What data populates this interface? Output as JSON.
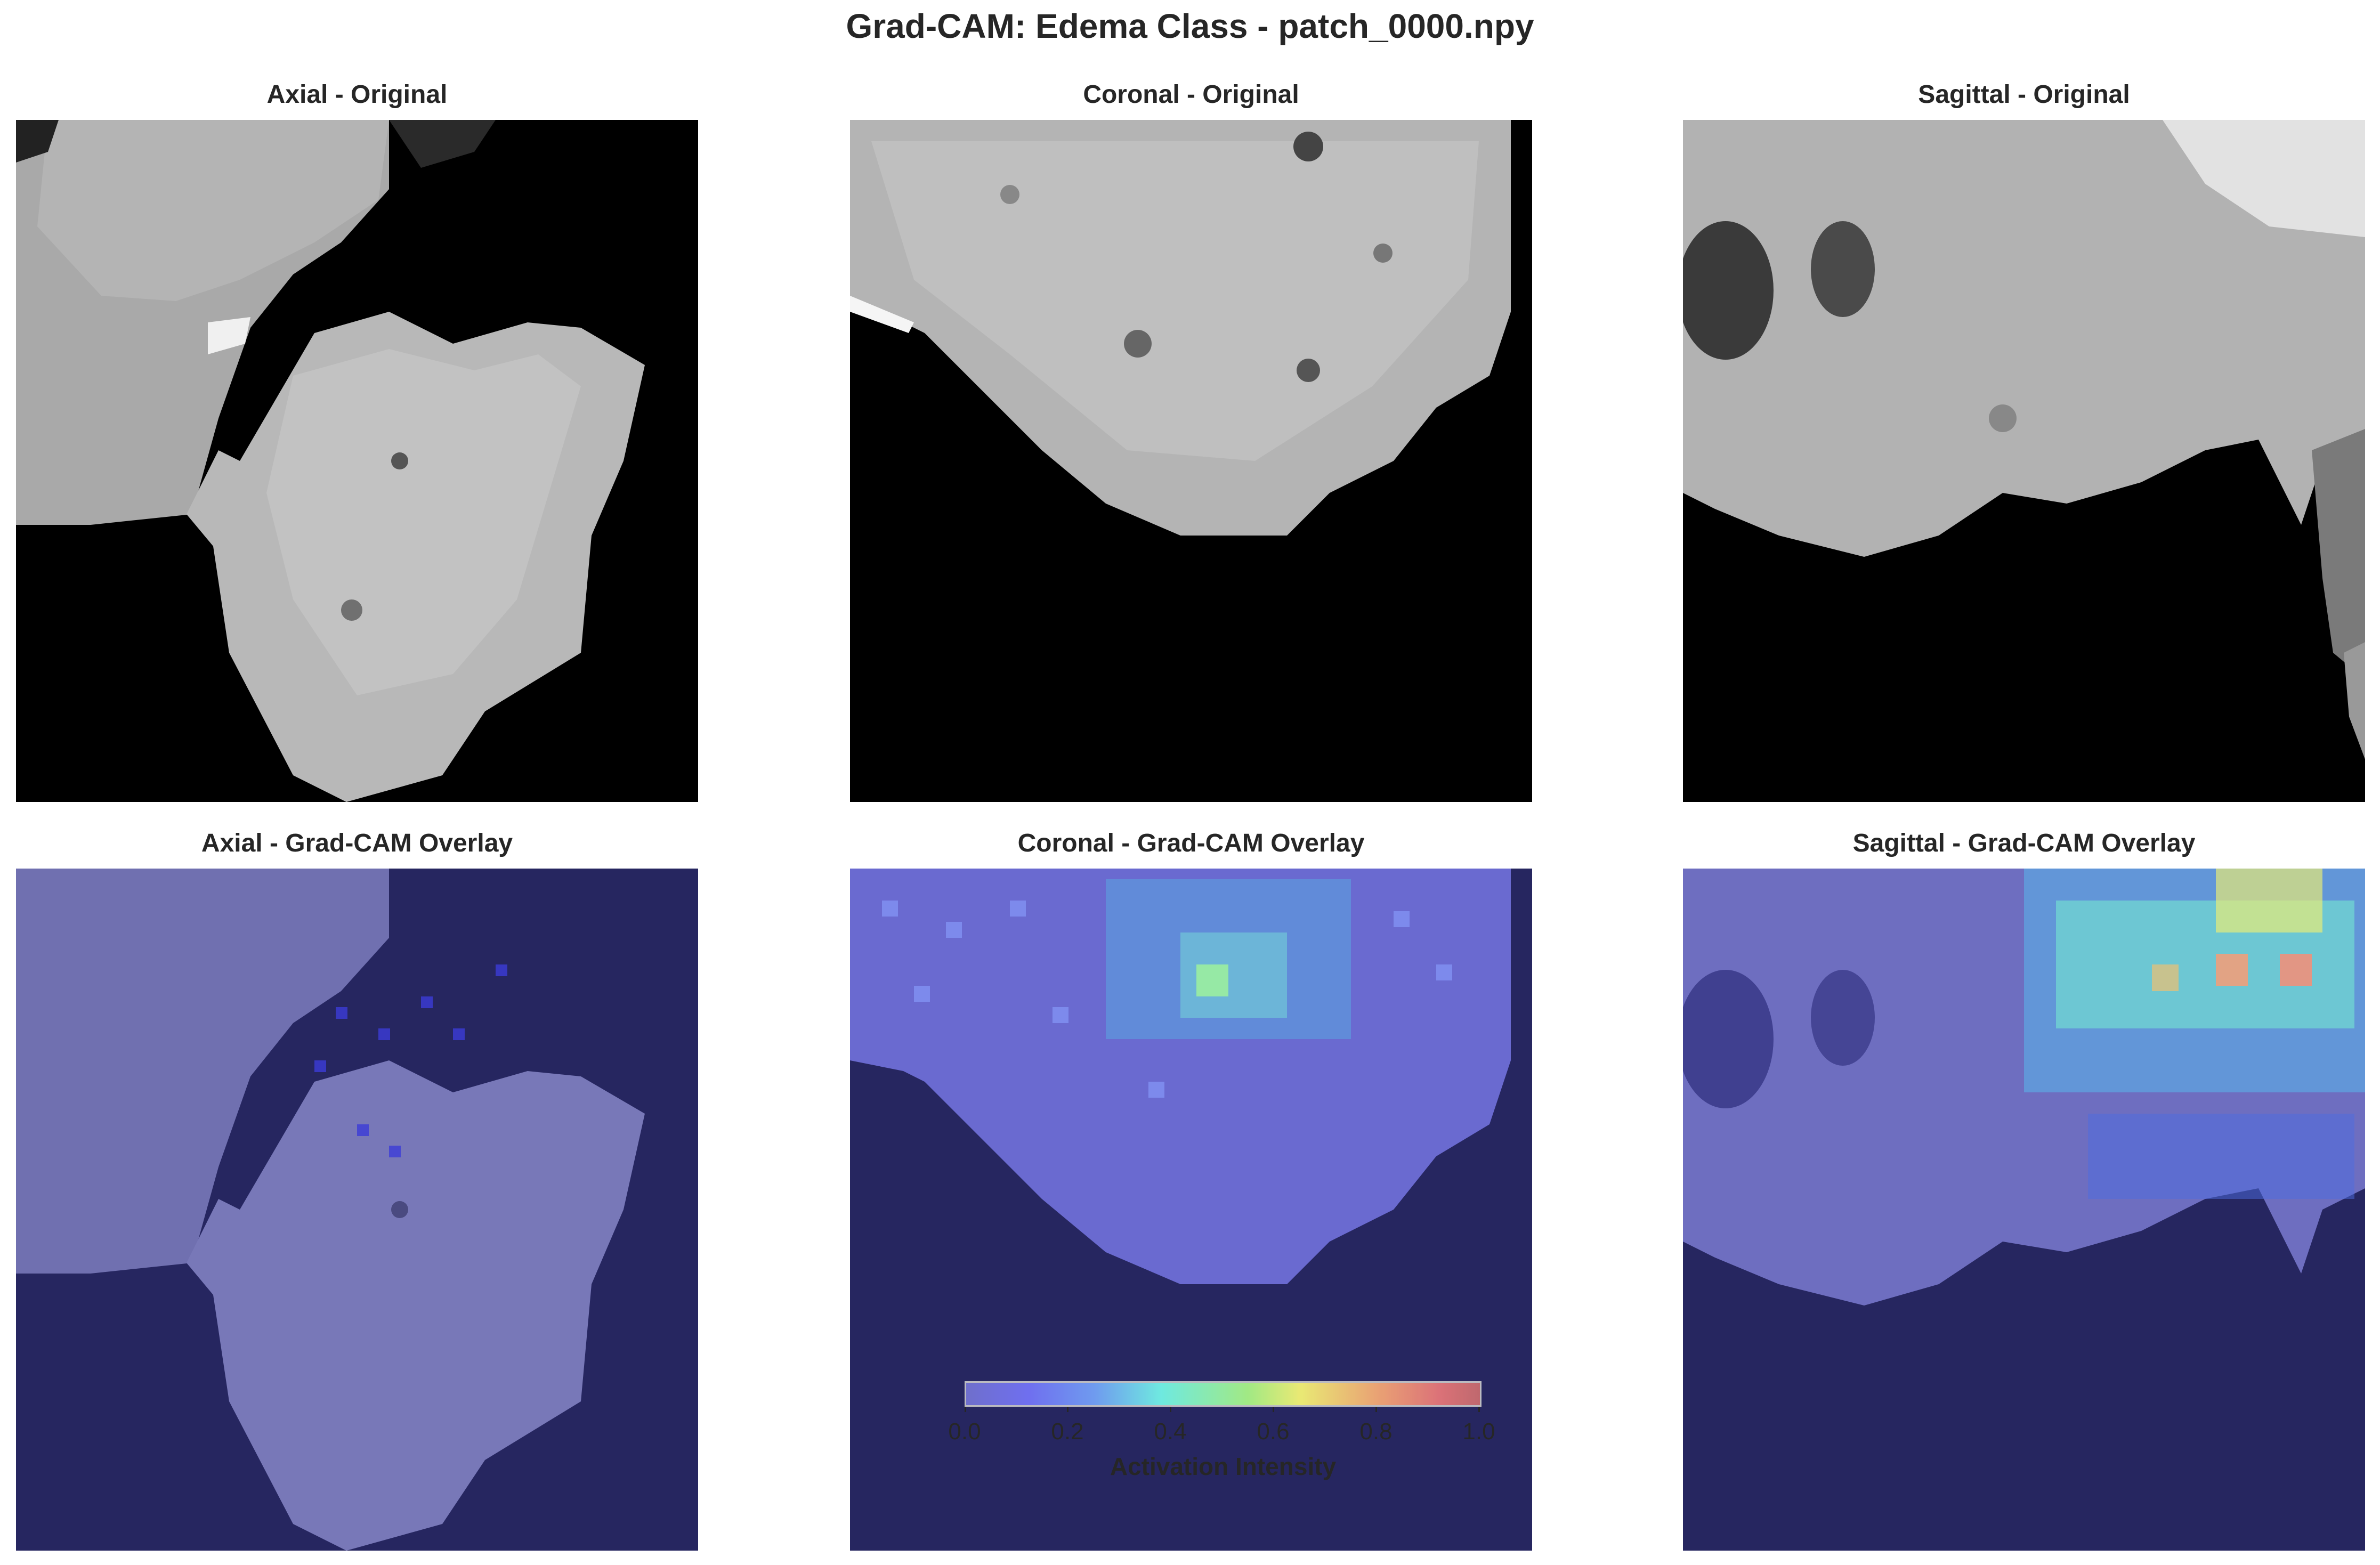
{
  "figure": {
    "title": "Grad-CAM: Edema Class - patch_0000.npy"
  },
  "panels": [
    {
      "id": "axial-original",
      "title": "Axial - Original"
    },
    {
      "id": "coronal-original",
      "title": "Coronal - Original"
    },
    {
      "id": "sagittal-original",
      "title": "Sagittal - Original"
    },
    {
      "id": "axial-overlay",
      "title": "Axial - Grad-CAM Overlay"
    },
    {
      "id": "coronal-overlay",
      "title": "Coronal - Grad-CAM Overlay"
    },
    {
      "id": "sagittal-overlay",
      "title": "Sagittal - Grad-CAM Overlay"
    }
  ],
  "colorbar": {
    "label": "Activation Intensity",
    "ticks": [
      "0.0",
      "0.2",
      "0.4",
      "0.6",
      "0.8",
      "1.0"
    ],
    "colormap": "jet",
    "colors": {
      "low": "#7878d8",
      "mid": "#77ffee",
      "high": "#d07070",
      "overlay_bg": "#262660"
    }
  }
}
